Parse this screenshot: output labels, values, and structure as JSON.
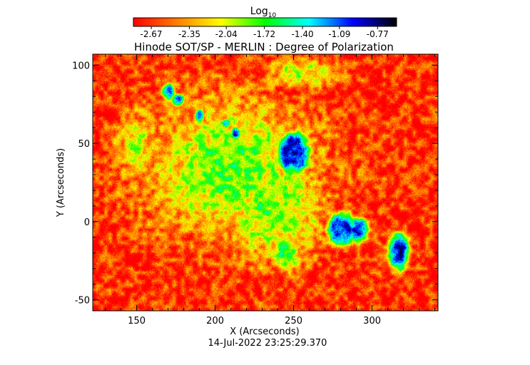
{
  "chart_data": {
    "type": "heatmap",
    "title": "Hinode SOT/SP - MERLIN : Degree of Polarization",
    "xlabel": "X (Arcseconds)",
    "ylabel": "Y (Arcseconds)",
    "timestamp": "14-Jul-2022 23:25:29.370",
    "xlim": [
      122,
      342
    ],
    "ylim": [
      -57,
      107
    ],
    "x_ticks": [
      150,
      200,
      250,
      300
    ],
    "y_ticks": [
      -50,
      0,
      50,
      100
    ],
    "colorbar": {
      "title_base": "Log",
      "title_sub": "10",
      "range": [
        -2.82,
        -0.61
      ],
      "tick_values": [
        -2.67,
        -2.35,
        -2.04,
        -1.72,
        -1.4,
        -1.09,
        -0.77
      ],
      "tick_labels": [
        "-2.67",
        "-2.35",
        "-2.04",
        "-1.72",
        "-1.40",
        "-1.09",
        "-0.77"
      ],
      "colormap": [
        "#ff0000",
        "#ff7f00",
        "#ffff00",
        "#00ff00",
        "#00ffff",
        "#0000ff",
        "#000000"
      ]
    },
    "background_value": -2.7,
    "features": [
      {
        "kind": "sunspot",
        "x": 250,
        "y": 44,
        "rx": 10,
        "ry": 14,
        "peak": -0.85
      },
      {
        "kind": "sunspot",
        "x": 280,
        "y": -5,
        "rx": 9,
        "ry": 11,
        "peak": -0.9
      },
      {
        "kind": "sunspot",
        "x": 291,
        "y": -5,
        "rx": 6,
        "ry": 8,
        "peak": -0.95
      },
      {
        "kind": "sunspot",
        "x": 317,
        "y": -19,
        "rx": 7,
        "ry": 12,
        "peak": -0.95
      },
      {
        "kind": "pore",
        "x": 170,
        "y": 83,
        "rx": 4,
        "ry": 5,
        "peak": -1.1
      },
      {
        "kind": "pore",
        "x": 190,
        "y": 68,
        "rx": 3,
        "ry": 4,
        "peak": -1.15
      },
      {
        "kind": "pore",
        "x": 207,
        "y": 63,
        "rx": 3,
        "ry": 3,
        "peak": -1.2
      },
      {
        "kind": "pore",
        "x": 213,
        "y": 57,
        "rx": 3,
        "ry": 4,
        "peak": -1.1
      },
      {
        "kind": "pore",
        "x": 176,
        "y": 78,
        "rx": 4,
        "ry": 4,
        "peak": -1.2
      },
      {
        "kind": "plage",
        "x": 210,
        "y": 35,
        "rx": 55,
        "ry": 45,
        "peak": -1.75
      },
      {
        "kind": "plage",
        "x": 235,
        "y": 10,
        "rx": 35,
        "ry": 35,
        "peak": -1.8
      },
      {
        "kind": "plage",
        "x": 255,
        "y": 95,
        "rx": 25,
        "ry": 10,
        "peak": -2.0
      },
      {
        "kind": "plage",
        "x": 245,
        "y": -20,
        "rx": 10,
        "ry": 12,
        "peak": -1.6
      },
      {
        "kind": "plage",
        "x": 150,
        "y": 50,
        "rx": 15,
        "ry": 25,
        "peak": -2.05
      }
    ]
  }
}
